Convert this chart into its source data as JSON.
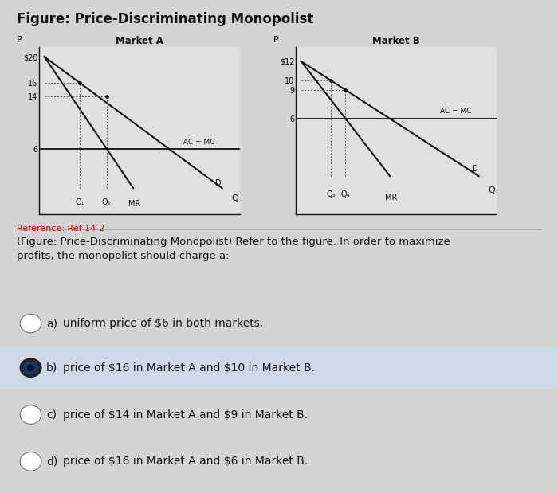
{
  "title": "Figure: Price-Discriminating Monopolist",
  "bg_color": "#d4d4d4",
  "chart_bg": "#e0e0e0",
  "market_a": {
    "title": "Market A",
    "p_intercept_D": 20,
    "ac_mc": 6,
    "price1": 16,
    "price2": 14,
    "y_ticks": [
      6,
      14,
      16,
      20
    ],
    "y_tick_labels": [
      "6",
      "14",
      "16",
      "$20"
    ]
  },
  "market_b": {
    "title": "Market B",
    "p_intercept_D": 12,
    "ac_mc": 6,
    "price1": 10,
    "price2": 9,
    "y_ticks": [
      6,
      9,
      10,
      12
    ],
    "y_tick_labels": [
      "6",
      "9",
      "10",
      "$12"
    ]
  },
  "reference": "Reference: Ref 14-2",
  "question": "(Figure: Price-Discriminating Monopolist) Refer to the figure. In order to maximize\nprofits, the monopolist should charge a:",
  "options": [
    {
      "letter": "a)",
      "text": "uniform price of $6 in both markets.",
      "selected": false
    },
    {
      "letter": "b)",
      "text": "price of $16 in Market A and $10 in Market B.",
      "selected": true
    },
    {
      "letter": "c)",
      "text": "price of $14 in Market A and $9 in Market B.",
      "selected": false
    },
    {
      "letter": "d)",
      "text": "price of $16 in Market A and $6 in Market B.",
      "selected": false
    }
  ],
  "line_color": "#111111",
  "dotted_color": "#555555",
  "selected_bg": "#ccd9e8",
  "ref_color": "#cc0000"
}
